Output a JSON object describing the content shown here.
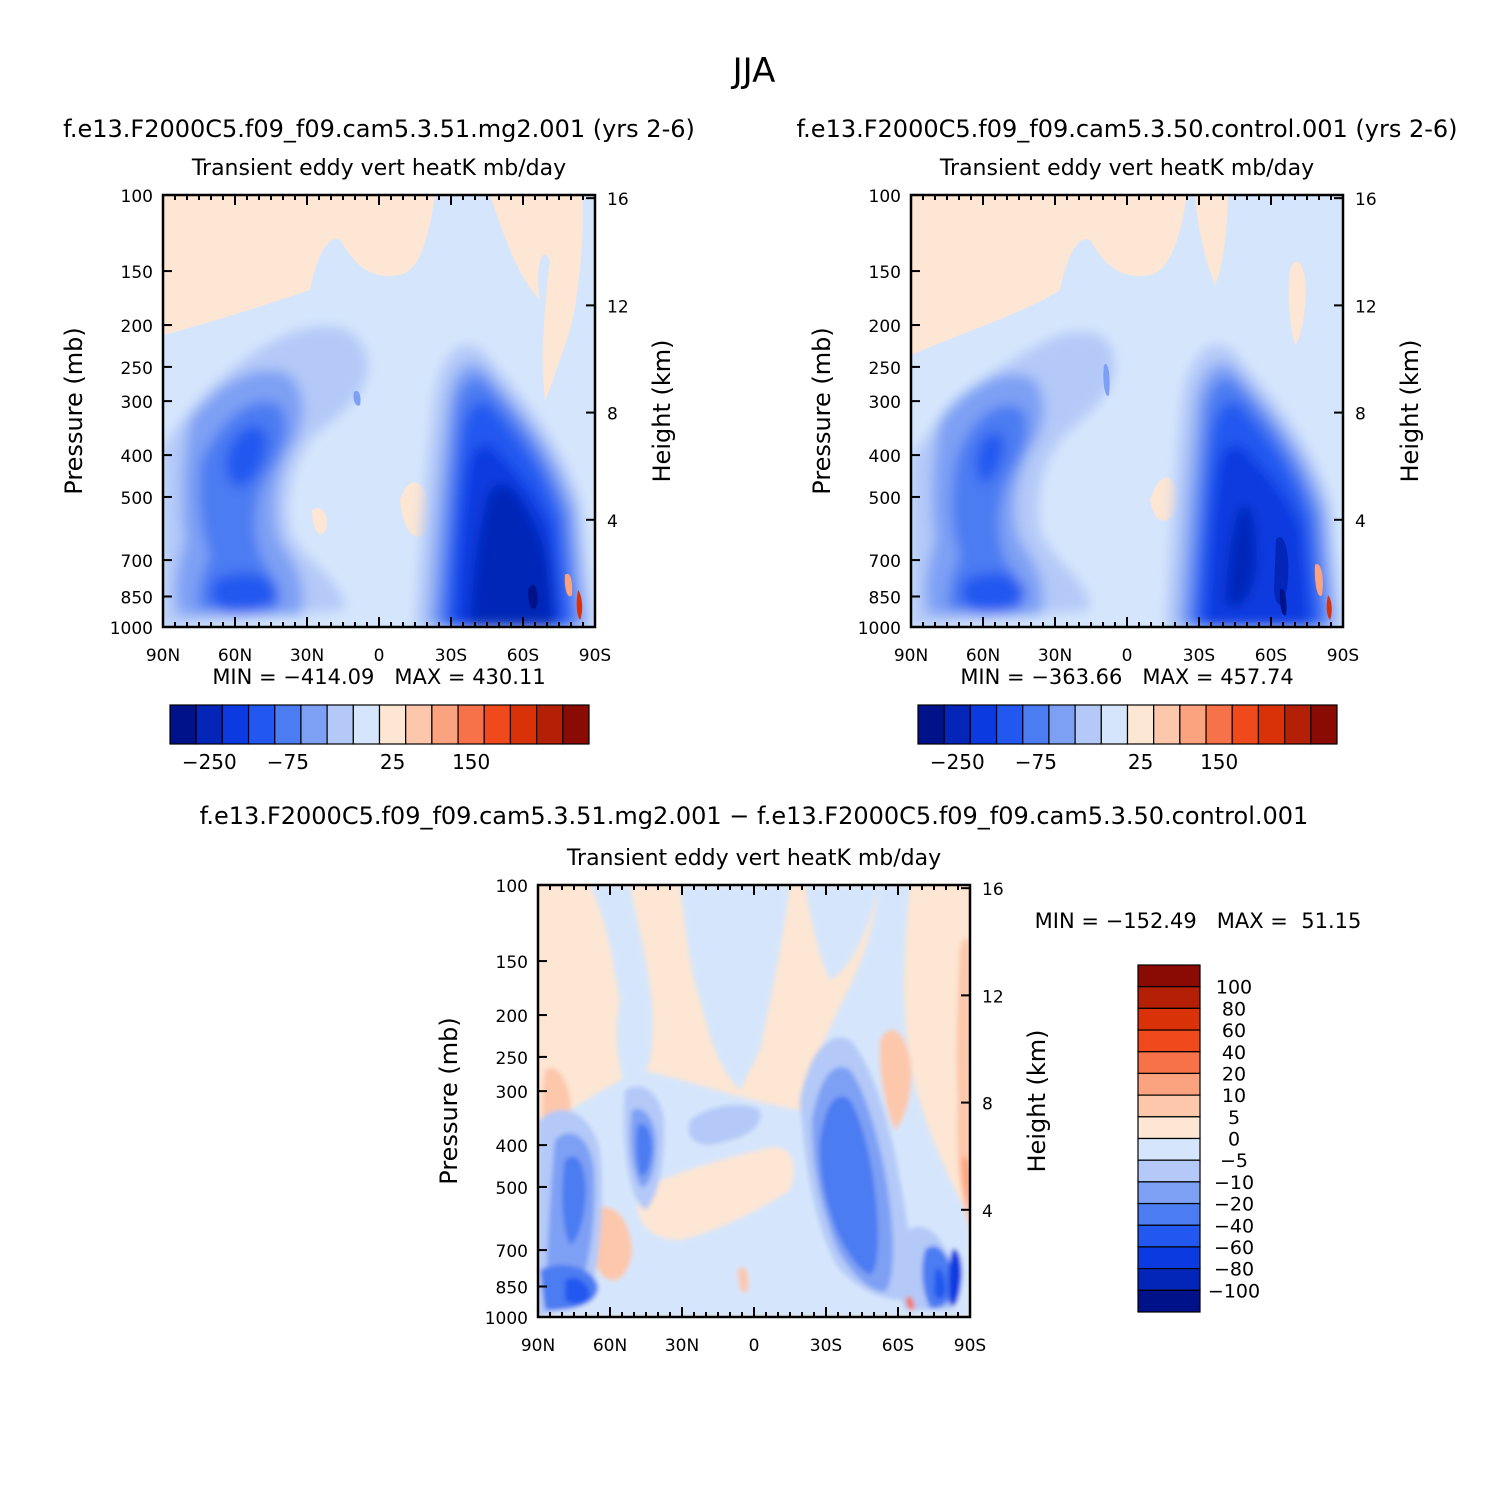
{
  "page_title": "JJA",
  "chart_data": [
    {
      "type": "heatmap",
      "title": "f.e13.F2000C5.f09_f09.cam5.3.51.mg2.001 (yrs 2-6)",
      "subtitle": "Transient eddy vert heatK mb/day",
      "ylabel": "Pressure (mb)",
      "y2label": "Height (km)",
      "x_ticks": [
        "90N",
        "60N",
        "30N",
        "0",
        "30S",
        "60S",
        "90S"
      ],
      "y_ticks": [
        "100",
        "150",
        "200",
        "250",
        "300",
        "400",
        "500",
        "700",
        "850",
        "1000"
      ],
      "y2_ticks": [
        "16",
        "12",
        "8",
        "4"
      ],
      "min_max": "MIN = −414.09   MAX = 430.11",
      "colorbar_labels": [
        "−250",
        "−75",
        "25",
        "150"
      ],
      "colorbar_colors": [
        "#00128a",
        "#0326b8",
        "#0b3be0",
        "#2258f0",
        "#4c7cf2",
        "#7ea0f4",
        "#b4c9f8",
        "#d5e6fc",
        "#fde6d3",
        "#fcc7ab",
        "#fba27e",
        "#f77149",
        "#f04a1c",
        "#d93108",
        "#b32005",
        "#8a0b03"
      ]
    },
    {
      "type": "heatmap",
      "title": "f.e13.F2000C5.f09_f09.cam5.3.50.control.001 (yrs 2-6)",
      "subtitle": "Transient eddy vert heatK mb/day",
      "ylabel": "Pressure (mb)",
      "y2label": "Height (km)",
      "x_ticks": [
        "90N",
        "60N",
        "30N",
        "0",
        "30S",
        "60S",
        "90S"
      ],
      "y_ticks": [
        "100",
        "150",
        "200",
        "250",
        "300",
        "400",
        "500",
        "700",
        "850",
        "1000"
      ],
      "y2_ticks": [
        "16",
        "12",
        "8",
        "4"
      ],
      "min_max": "MIN = −363.66   MAX = 457.74",
      "colorbar_labels": [
        "−250",
        "−75",
        "25",
        "150"
      ],
      "colorbar_colors": [
        "#00128a",
        "#0326b8",
        "#0b3be0",
        "#2258f0",
        "#4c7cf2",
        "#7ea0f4",
        "#b4c9f8",
        "#d5e6fc",
        "#fde6d3",
        "#fcc7ab",
        "#fba27e",
        "#f77149",
        "#f04a1c",
        "#d93108",
        "#b32005",
        "#8a0b03"
      ]
    },
    {
      "type": "heatmap",
      "title": "f.e13.F2000C5.f09_f09.cam5.3.51.mg2.001 − f.e13.F2000C5.f09_f09.cam5.3.50.control.001",
      "subtitle": "Transient eddy vert heatK mb/day",
      "ylabel": "Pressure (mb)",
      "y2label": "Height (km)",
      "x_ticks": [
        "90N",
        "60N",
        "30N",
        "0",
        "30S",
        "60S",
        "90S"
      ],
      "y_ticks": [
        "100",
        "150",
        "200",
        "250",
        "300",
        "400",
        "500",
        "700",
        "850",
        "1000"
      ],
      "y2_ticks": [
        "16",
        "12",
        "8",
        "4"
      ],
      "min_max": "MIN = −152.49   MAX =  51.15",
      "colorbar_labels": [
        "100",
        "80",
        "60",
        "40",
        "20",
        "10",
        "5",
        "0",
        "−5",
        "−10",
        "−20",
        "−40",
        "−60",
        "−80",
        "−100"
      ],
      "colorbar_colors": [
        "#8a0b03",
        "#b32005",
        "#d93108",
        "#f04a1c",
        "#f77149",
        "#fba27e",
        "#fcc7ab",
        "#fde6d3",
        "#d5e6fc",
        "#b4c9f8",
        "#7ea0f4",
        "#4c7cf2",
        "#2258f0",
        "#0b3be0",
        "#0326b8",
        "#00128a"
      ]
    }
  ]
}
